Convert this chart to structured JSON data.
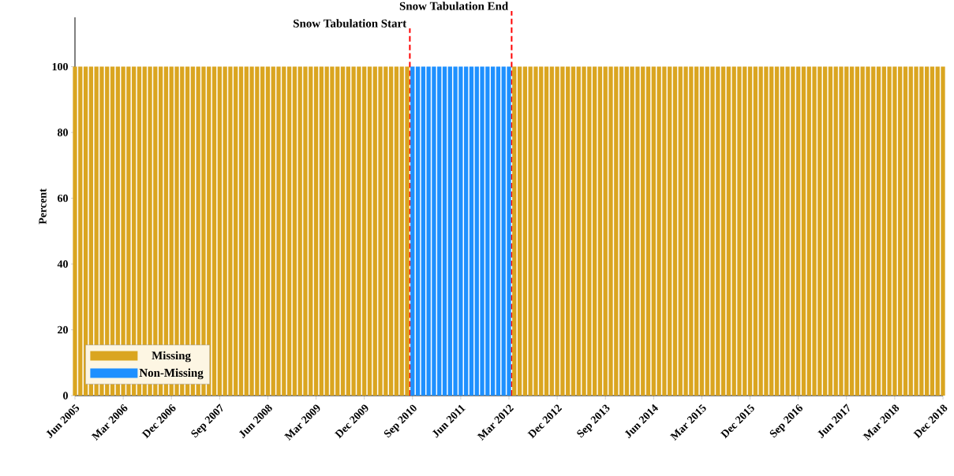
{
  "chart_data": {
    "type": "bar",
    "stacked": true,
    "ylabel": "Percent",
    "x": [
      "2005-06",
      "2005-07",
      "2005-08",
      "2005-09",
      "2005-10",
      "2005-11",
      "2005-12",
      "2006-01",
      "2006-02",
      "2006-03",
      "2006-04",
      "2006-05",
      "2006-06",
      "2006-07",
      "2006-08",
      "2006-09",
      "2006-10",
      "2006-11",
      "2006-12",
      "2007-01",
      "2007-02",
      "2007-03",
      "2007-04",
      "2007-05",
      "2007-06",
      "2007-07",
      "2007-08",
      "2007-09",
      "2007-10",
      "2007-11",
      "2007-12",
      "2008-01",
      "2008-02",
      "2008-03",
      "2008-04",
      "2008-05",
      "2008-06",
      "2008-07",
      "2008-08",
      "2008-09",
      "2008-10",
      "2008-11",
      "2008-12",
      "2009-01",
      "2009-02",
      "2009-03",
      "2009-04",
      "2009-05",
      "2009-06",
      "2009-07",
      "2009-08",
      "2009-09",
      "2009-10",
      "2009-11",
      "2009-12",
      "2010-01",
      "2010-02",
      "2010-03",
      "2010-04",
      "2010-05",
      "2010-06",
      "2010-07",
      "2010-08",
      "2010-09",
      "2010-10",
      "2010-11",
      "2010-12",
      "2011-01",
      "2011-02",
      "2011-03",
      "2011-04",
      "2011-05",
      "2011-06",
      "2011-07",
      "2011-08",
      "2011-09",
      "2011-10",
      "2011-11",
      "2011-12",
      "2012-01",
      "2012-02",
      "2012-03",
      "2012-04",
      "2012-05",
      "2012-06",
      "2012-07",
      "2012-08",
      "2012-09",
      "2012-10",
      "2012-11",
      "2012-12",
      "2013-01",
      "2013-02",
      "2013-03",
      "2013-04",
      "2013-05",
      "2013-06",
      "2013-07",
      "2013-08",
      "2013-09",
      "2013-10",
      "2013-11",
      "2013-12",
      "2014-01",
      "2014-02",
      "2014-03",
      "2014-04",
      "2014-05",
      "2014-06",
      "2014-07",
      "2014-08",
      "2014-09",
      "2014-10",
      "2014-11",
      "2014-12",
      "2015-01",
      "2015-02",
      "2015-03",
      "2015-04",
      "2015-05",
      "2015-06",
      "2015-07",
      "2015-08",
      "2015-09",
      "2015-10",
      "2015-11",
      "2015-12",
      "2016-01",
      "2016-02",
      "2016-03",
      "2016-04",
      "2016-05",
      "2016-06",
      "2016-07",
      "2016-08",
      "2016-09",
      "2016-10",
      "2016-11",
      "2016-12",
      "2017-01",
      "2017-02",
      "2017-03",
      "2017-04",
      "2017-05",
      "2017-06",
      "2017-07",
      "2017-08",
      "2017-09",
      "2017-10",
      "2017-11",
      "2017-12",
      "2018-01",
      "2018-02",
      "2018-03",
      "2018-04",
      "2018-05",
      "2018-06",
      "2018-07",
      "2018-08",
      "2018-09",
      "2018-10",
      "2018-11",
      "2018-12"
    ],
    "series": [
      {
        "name": "Missing",
        "color": "#daa520",
        "values": [
          100,
          100,
          100,
          100,
          100,
          100,
          100,
          100,
          100,
          100,
          100,
          100,
          100,
          100,
          100,
          100,
          100,
          100,
          100,
          100,
          100,
          100,
          100,
          100,
          100,
          100,
          100,
          100,
          100,
          100,
          100,
          100,
          100,
          100,
          100,
          100,
          100,
          100,
          100,
          100,
          100,
          100,
          100,
          100,
          100,
          100,
          100,
          100,
          100,
          100,
          100,
          100,
          100,
          100,
          100,
          100,
          100,
          100,
          100,
          100,
          100,
          100,
          100,
          0,
          0,
          0,
          0,
          0,
          0,
          0,
          0,
          0,
          0,
          0,
          0,
          0,
          0,
          0,
          0,
          0,
          0,
          0,
          100,
          100,
          100,
          100,
          100,
          100,
          100,
          100,
          100,
          100,
          100,
          100,
          100,
          100,
          100,
          100,
          100,
          100,
          100,
          100,
          100,
          100,
          100,
          100,
          100,
          100,
          100,
          100,
          100,
          100,
          100,
          100,
          100,
          100,
          100,
          100,
          100,
          100,
          100,
          100,
          100,
          100,
          100,
          100,
          100,
          100,
          100,
          100,
          100,
          100,
          100,
          100,
          100,
          100,
          100,
          100,
          100,
          100,
          100,
          100,
          100,
          100,
          100,
          100,
          100,
          100,
          100,
          100,
          100,
          100,
          100,
          100,
          100,
          100,
          100,
          100,
          100,
          100,
          100,
          100,
          100
        ]
      },
      {
        "name": "Non-Missing",
        "color": "#1e90ff",
        "values": [
          0,
          0,
          0,
          0,
          0,
          0,
          0,
          0,
          0,
          0,
          0,
          0,
          0,
          0,
          0,
          0,
          0,
          0,
          0,
          0,
          0,
          0,
          0,
          0,
          0,
          0,
          0,
          0,
          0,
          0,
          0,
          0,
          0,
          0,
          0,
          0,
          0,
          0,
          0,
          0,
          0,
          0,
          0,
          0,
          0,
          0,
          0,
          0,
          0,
          0,
          0,
          0,
          0,
          0,
          0,
          0,
          0,
          0,
          0,
          0,
          0,
          0,
          0,
          100,
          100,
          100,
          100,
          100,
          100,
          100,
          100,
          100,
          100,
          100,
          100,
          100,
          100,
          100,
          100,
          100,
          100,
          100,
          0,
          0,
          0,
          0,
          0,
          0,
          0,
          0,
          0,
          0,
          0,
          0,
          0,
          0,
          0,
          0,
          0,
          0,
          0,
          0,
          0,
          0,
          0,
          0,
          0,
          0,
          0,
          0,
          0,
          0,
          0,
          0,
          0,
          0,
          0,
          0,
          0,
          0,
          0,
          0,
          0,
          0,
          0,
          0,
          0,
          0,
          0,
          0,
          0,
          0,
          0,
          0,
          0,
          0,
          0,
          0,
          0,
          0,
          0,
          0,
          0,
          0,
          0,
          0,
          0,
          0,
          0,
          0,
          0,
          0,
          0,
          0,
          0,
          0,
          0,
          0,
          0,
          0,
          0,
          0,
          0
        ]
      }
    ],
    "xlim": [
      "2005-06",
      "2018-12"
    ],
    "xticks": [
      {
        "value": "2005-06",
        "label": "Jun 2005"
      },
      {
        "value": "2006-03",
        "label": "Mar 2006"
      },
      {
        "value": "2006-12",
        "label": "Dec 2006"
      },
      {
        "value": "2007-09",
        "label": "Sep 2007"
      },
      {
        "value": "2008-06",
        "label": "Jun 2008"
      },
      {
        "value": "2009-03",
        "label": "Mar 2009"
      },
      {
        "value": "2009-12",
        "label": "Dec 2009"
      },
      {
        "value": "2010-09",
        "label": "Sep 2010"
      },
      {
        "value": "2011-06",
        "label": "Jun 2011"
      },
      {
        "value": "2012-03",
        "label": "Mar 2012"
      },
      {
        "value": "2012-12",
        "label": "Dec 2012"
      },
      {
        "value": "2013-09",
        "label": "Sep 2013"
      },
      {
        "value": "2014-06",
        "label": "Jun 2014"
      },
      {
        "value": "2015-03",
        "label": "Mar 2015"
      },
      {
        "value": "2015-12",
        "label": "Dec 2015"
      },
      {
        "value": "2016-09",
        "label": "Sep 2016"
      },
      {
        "value": "2017-06",
        "label": "Jun 2017"
      },
      {
        "value": "2018-03",
        "label": "Mar 2018"
      },
      {
        "value": "2018-12",
        "label": "Dec 2018"
      }
    ],
    "ylim": [
      0,
      115
    ],
    "yticks": [
      0,
      20,
      40,
      60,
      80,
      100
    ],
    "ref_lines": [
      {
        "axis": "x",
        "value": "2010-08-16",
        "label": "Snow Tabulation Start",
        "color": "#ff0000",
        "line_style": "dashed"
      },
      {
        "axis": "x",
        "value": "2012-03-16",
        "label": "Snow Tabulation End",
        "color": "#ff0000",
        "line_style": "dashed"
      }
    ],
    "legend": "bottom left"
  }
}
